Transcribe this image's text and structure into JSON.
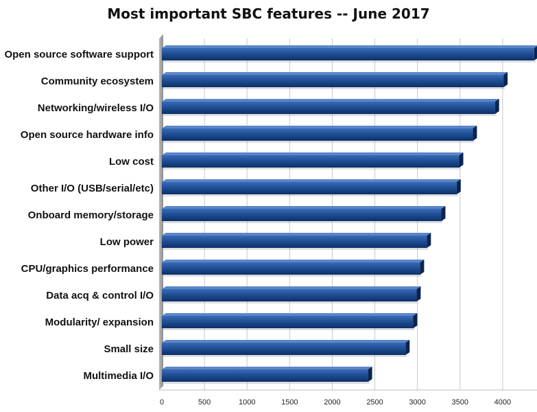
{
  "chart_data": {
    "type": "bar",
    "orientation": "horizontal",
    "title": "Most important SBC features -- June 2017",
    "categories": [
      "Open source software support",
      "Community ecosystem",
      "Networking/wireless I/O",
      "Open source hardware info",
      "Low cost",
      "Other I/O (USB/serial/etc)",
      "Onboard memory/storage",
      "Low power",
      "CPU/graphics performance",
      "Data acq & control I/O",
      "Modularity/ expansion",
      "Small size",
      "Multimedia I/O"
    ],
    "values": [
      4370,
      4010,
      3910,
      3650,
      3490,
      3460,
      3280,
      3110,
      3030,
      2990,
      2950,
      2860,
      2420
    ],
    "xlim": [
      0,
      4500
    ],
    "xticks": [
      0,
      500,
      1000,
      1500,
      2000,
      2500,
      3000,
      3500,
      4000,
      4500
    ],
    "grid": true,
    "bar_color": "#1a4a8c"
  }
}
